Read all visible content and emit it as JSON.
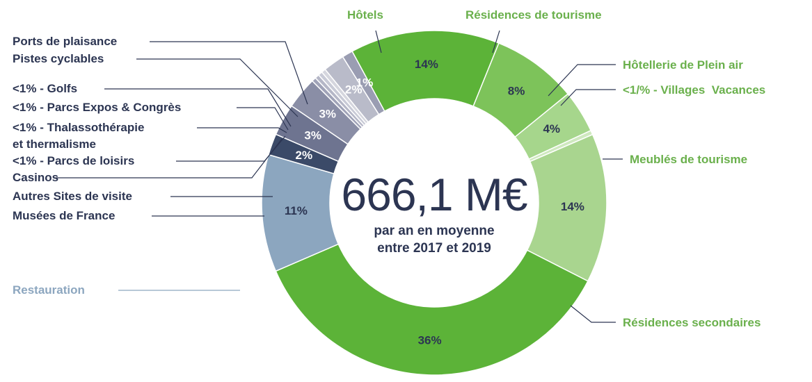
{
  "chart_data": {
    "type": "donut",
    "categories": [
      "Hôtels",
      "Résidences de tourisme",
      "Hôtellerie de Plein air",
      "<1/% - Villages  Vacances",
      "Meublés de tourisme",
      "Résidences secondaires",
      "Restauration",
      "Musées de France",
      "Autres Sites de visite",
      "Casinos",
      "<1% - Parcs de loisirs",
      "<1% - Thalassothérapie\net thermalisme",
      "<1% - Parcs Expos & Congrès",
      "<1% - Golfs",
      "Pistes cyclables",
      "Ports de plaisance"
    ],
    "values": [
      14,
      8,
      4,
      0.4,
      14,
      36,
      11,
      2,
      3,
      3,
      0.4,
      0.4,
      0.4,
      0.4,
      2,
      1
    ],
    "value_labels": [
      "14%",
      "8%",
      "4%",
      null,
      "14%",
      "36%",
      "11%",
      "2%",
      "3%",
      "3%",
      null,
      null,
      null,
      null,
      "2%",
      "1%"
    ],
    "colors": [
      "#5cb338",
      "#7dc35a",
      "#a6d68c",
      "#cfe9bf",
      "#a9d58f",
      "#5cb338",
      "#8ca6bf",
      "#3b4a68",
      "#6e7490",
      "#8a8ea6",
      "#a0a3b8",
      "#b5b7c7",
      "#c8cad6",
      "#d5d6de",
      "#b9bbc9",
      "#9a9db2"
    ],
    "label_colors": [
      "#6ab04c",
      "#6ab04c",
      "#6ab04c",
      "#6ab04c",
      "#6ab04c",
      "#6ab04c",
      "#8ca6bf",
      "#2c3552",
      "#2c3552",
      "#2c3552",
      "#2c3552",
      "#2c3552",
      "#2c3552",
      "#2c3552",
      "#2c3552",
      "#2c3552"
    ],
    "center_value": "666,1 M€",
    "center_text": "par an en moyenne\nentre 2017 et 2019"
  }
}
